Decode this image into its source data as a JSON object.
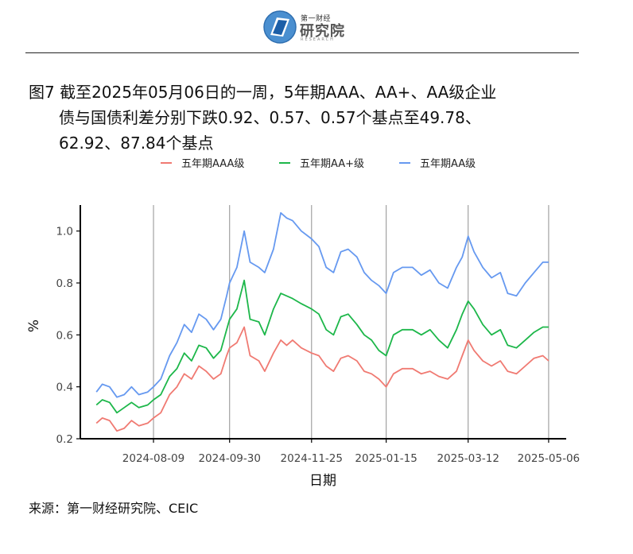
{
  "header": {
    "logo_small": "第一财经",
    "logo_big": "研究院",
    "logo_sub": "RESEARCH"
  },
  "caption": {
    "line1": "图7  截至2025年05月06日的一周，5年期AAA、AA+、AA级企业",
    "line2": "债与国债利差分别下跌0.92、0.57、0.57个基点至49.78、",
    "line3": "62.92、87.84个基点"
  },
  "source": "来源：第一财经研究院、CEIC",
  "colors": {
    "aaa": "#F07A72",
    "aaplus": "#1DB74A",
    "aa": "#6699F0",
    "axis": "#000000",
    "grid": "#9a9a9a"
  },
  "chart_data": {
    "type": "line",
    "xlabel": "日期",
    "ylabel": "%",
    "ylim": [
      0.2,
      1.1
    ],
    "yticks": [
      0.2,
      0.4,
      0.6,
      0.8,
      1.0
    ],
    "ytick_labels": [
      "0.2",
      "0.4",
      "0.6",
      "0.8",
      "1.0"
    ],
    "xlim": [
      "2024-06-20",
      "2025-05-18"
    ],
    "xticks": [
      "2024-08-09",
      "2024-09-30",
      "2024-11-25",
      "2025-01-15",
      "2025-03-12",
      "2025-05-06"
    ],
    "vertical_gridlines": true,
    "legend_position": "top",
    "series": [
      {
        "name": "五年期AAA级",
        "color_key": "aaa",
        "points": [
          [
            "2024-07-01",
            0.26
          ],
          [
            "2024-07-05",
            0.28
          ],
          [
            "2024-07-10",
            0.27
          ],
          [
            "2024-07-15",
            0.23
          ],
          [
            "2024-07-20",
            0.24
          ],
          [
            "2024-07-25",
            0.27
          ],
          [
            "2024-07-30",
            0.25
          ],
          [
            "2024-08-05",
            0.26
          ],
          [
            "2024-08-09",
            0.28
          ],
          [
            "2024-08-14",
            0.3
          ],
          [
            "2024-08-20",
            0.37
          ],
          [
            "2024-08-25",
            0.4
          ],
          [
            "2024-08-30",
            0.45
          ],
          [
            "2024-09-04",
            0.43
          ],
          [
            "2024-09-09",
            0.48
          ],
          [
            "2024-09-14",
            0.46
          ],
          [
            "2024-09-19",
            0.43
          ],
          [
            "2024-09-24",
            0.45
          ],
          [
            "2024-09-28",
            0.52
          ],
          [
            "2024-09-30",
            0.55
          ],
          [
            "2024-10-05",
            0.57
          ],
          [
            "2024-10-10",
            0.63
          ],
          [
            "2024-10-14",
            0.52
          ],
          [
            "2024-10-20",
            0.5
          ],
          [
            "2024-10-24",
            0.46
          ],
          [
            "2024-10-30",
            0.53
          ],
          [
            "2024-11-04",
            0.58
          ],
          [
            "2024-11-08",
            0.56
          ],
          [
            "2024-11-12",
            0.58
          ],
          [
            "2024-11-18",
            0.55
          ],
          [
            "2024-11-25",
            0.53
          ],
          [
            "2024-11-30",
            0.52
          ],
          [
            "2024-12-05",
            0.48
          ],
          [
            "2024-12-10",
            0.46
          ],
          [
            "2024-12-15",
            0.51
          ],
          [
            "2024-12-20",
            0.52
          ],
          [
            "2024-12-26",
            0.5
          ],
          [
            "2024-12-31",
            0.46
          ],
          [
            "2025-01-05",
            0.45
          ],
          [
            "2025-01-10",
            0.43
          ],
          [
            "2025-01-15",
            0.4
          ],
          [
            "2025-01-20",
            0.45
          ],
          [
            "2025-01-26",
            0.47
          ],
          [
            "2025-02-02",
            0.47
          ],
          [
            "2025-02-08",
            0.45
          ],
          [
            "2025-02-14",
            0.46
          ],
          [
            "2025-02-20",
            0.44
          ],
          [
            "2025-02-26",
            0.43
          ],
          [
            "2025-03-04",
            0.46
          ],
          [
            "2025-03-08",
            0.52
          ],
          [
            "2025-03-12",
            0.58
          ],
          [
            "2025-03-16",
            0.54
          ],
          [
            "2025-03-22",
            0.5
          ],
          [
            "2025-03-28",
            0.48
          ],
          [
            "2025-04-03",
            0.5
          ],
          [
            "2025-04-08",
            0.46
          ],
          [
            "2025-04-14",
            0.45
          ],
          [
            "2025-04-20",
            0.48
          ],
          [
            "2025-04-26",
            0.51
          ],
          [
            "2025-05-02",
            0.52
          ],
          [
            "2025-05-06",
            0.5
          ]
        ]
      },
      {
        "name": "五年期AA+级",
        "color_key": "aaplus",
        "points": [
          [
            "2024-07-01",
            0.33
          ],
          [
            "2024-07-05",
            0.35
          ],
          [
            "2024-07-10",
            0.34
          ],
          [
            "2024-07-15",
            0.3
          ],
          [
            "2024-07-20",
            0.32
          ],
          [
            "2024-07-25",
            0.34
          ],
          [
            "2024-07-30",
            0.32
          ],
          [
            "2024-08-05",
            0.33
          ],
          [
            "2024-08-09",
            0.35
          ],
          [
            "2024-08-14",
            0.37
          ],
          [
            "2024-08-20",
            0.44
          ],
          [
            "2024-08-25",
            0.47
          ],
          [
            "2024-08-30",
            0.53
          ],
          [
            "2024-09-04",
            0.5
          ],
          [
            "2024-09-09",
            0.56
          ],
          [
            "2024-09-14",
            0.55
          ],
          [
            "2024-09-19",
            0.51
          ],
          [
            "2024-09-24",
            0.54
          ],
          [
            "2024-09-28",
            0.62
          ],
          [
            "2024-09-30",
            0.66
          ],
          [
            "2024-10-05",
            0.7
          ],
          [
            "2024-10-10",
            0.81
          ],
          [
            "2024-10-14",
            0.66
          ],
          [
            "2024-10-20",
            0.65
          ],
          [
            "2024-10-24",
            0.6
          ],
          [
            "2024-10-30",
            0.7
          ],
          [
            "2024-11-04",
            0.76
          ],
          [
            "2024-11-08",
            0.75
          ],
          [
            "2024-11-12",
            0.74
          ],
          [
            "2024-11-18",
            0.72
          ],
          [
            "2024-11-25",
            0.7
          ],
          [
            "2024-11-30",
            0.68
          ],
          [
            "2024-12-05",
            0.62
          ],
          [
            "2024-12-10",
            0.6
          ],
          [
            "2024-12-15",
            0.67
          ],
          [
            "2024-12-20",
            0.68
          ],
          [
            "2024-12-26",
            0.64
          ],
          [
            "2024-12-31",
            0.6
          ],
          [
            "2025-01-05",
            0.58
          ],
          [
            "2025-01-10",
            0.54
          ],
          [
            "2025-01-15",
            0.52
          ],
          [
            "2025-01-20",
            0.6
          ],
          [
            "2025-01-26",
            0.62
          ],
          [
            "2025-02-02",
            0.62
          ],
          [
            "2025-02-08",
            0.6
          ],
          [
            "2025-02-14",
            0.62
          ],
          [
            "2025-02-20",
            0.58
          ],
          [
            "2025-02-26",
            0.55
          ],
          [
            "2025-03-04",
            0.62
          ],
          [
            "2025-03-08",
            0.68
          ],
          [
            "2025-03-12",
            0.73
          ],
          [
            "2025-03-16",
            0.7
          ],
          [
            "2025-03-22",
            0.64
          ],
          [
            "2025-03-28",
            0.6
          ],
          [
            "2025-04-03",
            0.62
          ],
          [
            "2025-04-08",
            0.56
          ],
          [
            "2025-04-14",
            0.55
          ],
          [
            "2025-04-20",
            0.58
          ],
          [
            "2025-04-26",
            0.61
          ],
          [
            "2025-05-02",
            0.63
          ],
          [
            "2025-05-06",
            0.63
          ]
        ]
      },
      {
        "name": "五年期AA级",
        "color_key": "aa",
        "points": [
          [
            "2024-07-01",
            0.38
          ],
          [
            "2024-07-05",
            0.41
          ],
          [
            "2024-07-10",
            0.4
          ],
          [
            "2024-07-15",
            0.36
          ],
          [
            "2024-07-20",
            0.37
          ],
          [
            "2024-07-25",
            0.4
          ],
          [
            "2024-07-30",
            0.37
          ],
          [
            "2024-08-05",
            0.38
          ],
          [
            "2024-08-09",
            0.4
          ],
          [
            "2024-08-14",
            0.43
          ],
          [
            "2024-08-20",
            0.52
          ],
          [
            "2024-08-25",
            0.57
          ],
          [
            "2024-08-30",
            0.64
          ],
          [
            "2024-09-04",
            0.61
          ],
          [
            "2024-09-09",
            0.68
          ],
          [
            "2024-09-14",
            0.66
          ],
          [
            "2024-09-19",
            0.62
          ],
          [
            "2024-09-24",
            0.66
          ],
          [
            "2024-09-28",
            0.75
          ],
          [
            "2024-09-30",
            0.8
          ],
          [
            "2024-10-05",
            0.86
          ],
          [
            "2024-10-10",
            1.0
          ],
          [
            "2024-10-14",
            0.88
          ],
          [
            "2024-10-20",
            0.86
          ],
          [
            "2024-10-24",
            0.84
          ],
          [
            "2024-10-30",
            0.93
          ],
          [
            "2024-11-04",
            1.07
          ],
          [
            "2024-11-08",
            1.05
          ],
          [
            "2024-11-12",
            1.04
          ],
          [
            "2024-11-18",
            1.0
          ],
          [
            "2024-11-25",
            0.97
          ],
          [
            "2024-11-30",
            0.94
          ],
          [
            "2024-12-05",
            0.86
          ],
          [
            "2024-12-10",
            0.84
          ],
          [
            "2024-12-15",
            0.92
          ],
          [
            "2024-12-20",
            0.93
          ],
          [
            "2024-12-26",
            0.9
          ],
          [
            "2024-12-31",
            0.84
          ],
          [
            "2025-01-05",
            0.81
          ],
          [
            "2025-01-10",
            0.79
          ],
          [
            "2025-01-15",
            0.76
          ],
          [
            "2025-01-20",
            0.84
          ],
          [
            "2025-01-26",
            0.86
          ],
          [
            "2025-02-02",
            0.86
          ],
          [
            "2025-02-08",
            0.83
          ],
          [
            "2025-02-14",
            0.85
          ],
          [
            "2025-02-20",
            0.8
          ],
          [
            "2025-02-26",
            0.78
          ],
          [
            "2025-03-04",
            0.86
          ],
          [
            "2025-03-08",
            0.9
          ],
          [
            "2025-03-12",
            0.98
          ],
          [
            "2025-03-16",
            0.92
          ],
          [
            "2025-03-22",
            0.86
          ],
          [
            "2025-03-28",
            0.82
          ],
          [
            "2025-04-03",
            0.84
          ],
          [
            "2025-04-08",
            0.76
          ],
          [
            "2025-04-14",
            0.75
          ],
          [
            "2025-04-20",
            0.8
          ],
          [
            "2025-04-26",
            0.84
          ],
          [
            "2025-05-02",
            0.88
          ],
          [
            "2025-05-06",
            0.88
          ]
        ]
      }
    ]
  }
}
